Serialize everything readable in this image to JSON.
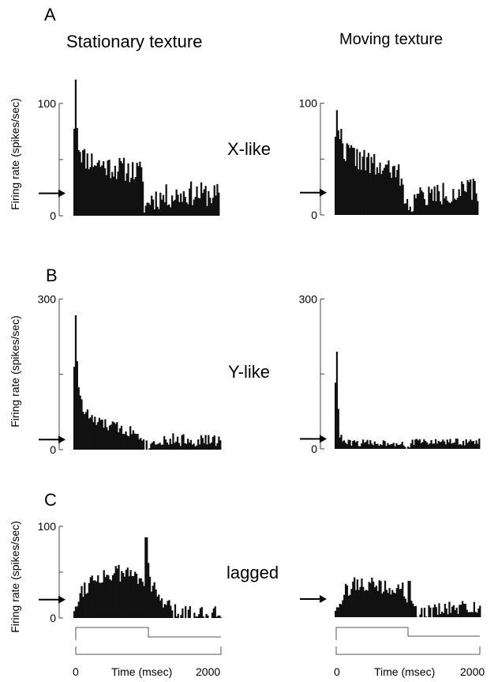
{
  "figure": {
    "column_titles": [
      "Stationary texture",
      "Moving texture"
    ],
    "ylabel": "Firing rate (spikes/sec)",
    "xlabel": "Time (msec)",
    "x_ticks": [
      "0",
      "2000"
    ]
  },
  "chart_data": [
    {
      "type": "bar",
      "panel": "A",
      "column": "Stationary texture",
      "cell_class": "X-like",
      "ylabel": "Firing rate (spikes/sec)",
      "ylim": [
        0,
        140
      ],
      "ytick_labels": [
        "0",
        "100"
      ],
      "y_ticks": [
        0,
        100
      ],
      "xlim": [
        0,
        2000
      ],
      "bin_ms": 20,
      "spontaneous_rate": 20,
      "profile": [
        [
          0,
          15
        ],
        [
          20,
          140
        ],
        [
          60,
          65
        ],
        [
          140,
          52
        ],
        [
          400,
          45
        ],
        [
          950,
          38
        ],
        [
          960,
          2
        ],
        [
          1040,
          15
        ],
        [
          1600,
          20
        ],
        [
          2000,
          18
        ]
      ],
      "noise": 11,
      "seed": 11
    },
    {
      "type": "bar",
      "panel": "A",
      "column": "Moving texture",
      "cell_class": "X-like",
      "ylabel": "Firing rate (spikes/sec)",
      "ylim": [
        0,
        140
      ],
      "ytick_labels": [
        "0",
        "100"
      ],
      "y_ticks": [
        0,
        100
      ],
      "xlim": [
        0,
        2000
      ],
      "bin_ms": 20,
      "spontaneous_rate": 20,
      "profile": [
        [
          0,
          40
        ],
        [
          20,
          100
        ],
        [
          60,
          75
        ],
        [
          140,
          58
        ],
        [
          500,
          45
        ],
        [
          950,
          35
        ],
        [
          960,
          2
        ],
        [
          1100,
          15
        ],
        [
          1600,
          20
        ],
        [
          2000,
          22
        ]
      ],
      "noise": 11,
      "seed": 22
    },
    {
      "type": "bar",
      "panel": "B",
      "column": "Stationary texture",
      "cell_class": "Y-like",
      "ylabel": "Firing rate (spikes/sec)",
      "ylim": [
        0,
        310
      ],
      "ytick_labels": [
        "0",
        "300"
      ],
      "y_ticks": [
        0,
        300
      ],
      "xlim": [
        0,
        2000
      ],
      "bin_ms": 20,
      "spontaneous_rate": 20,
      "profile": [
        [
          0,
          20
        ],
        [
          20,
          310
        ],
        [
          60,
          140
        ],
        [
          120,
          80
        ],
        [
          300,
          55
        ],
        [
          950,
          30
        ],
        [
          960,
          5
        ],
        [
          1150,
          20
        ],
        [
          2000,
          18
        ]
      ],
      "noise": 13,
      "seed": 33
    },
    {
      "type": "bar",
      "panel": "B",
      "column": "Moving texture",
      "cell_class": "Y-like",
      "ylabel": "Firing rate (spikes/sec)",
      "ylim": [
        0,
        310
      ],
      "ytick_labels": [
        "0",
        "300"
      ],
      "y_ticks": [
        0,
        300
      ],
      "xlim": [
        0,
        2000
      ],
      "bin_ms": 20,
      "spontaneous_rate": 20,
      "profile": [
        [
          0,
          15
        ],
        [
          20,
          250
        ],
        [
          60,
          28
        ],
        [
          140,
          12
        ],
        [
          950,
          12
        ],
        [
          960,
          2
        ],
        [
          1100,
          14
        ],
        [
          2000,
          14
        ]
      ],
      "noise": 7,
      "seed": 44
    },
    {
      "type": "bar",
      "panel": "C",
      "column": "Stationary texture",
      "cell_class": "lagged",
      "ylabel": "Firing rate (spikes/sec)",
      "ylim": [
        0,
        100
      ],
      "ytick_labels": [
        "0",
        "100"
      ],
      "y_ticks": [
        0,
        100
      ],
      "xlim": [
        0,
        2000
      ],
      "bin_ms": 20,
      "spontaneous_rate": 20,
      "profile": [
        [
          0,
          5
        ],
        [
          100,
          30
        ],
        [
          300,
          45
        ],
        [
          600,
          48
        ],
        [
          850,
          48
        ],
        [
          1000,
          40
        ],
        [
          1150,
          22
        ],
        [
          1350,
          5
        ],
        [
          2000,
          5
        ]
      ],
      "spikes": [
        [
          980,
          88
        ],
        [
          1000,
          60
        ]
      ],
      "noise": 10,
      "seed": 55
    },
    {
      "type": "bar",
      "panel": "C",
      "column": "Moving texture",
      "cell_class": "lagged",
      "ylabel": "Firing rate (spikes/sec)",
      "ylim": [
        0,
        100
      ],
      "ytick_labels": [],
      "y_ticks": [],
      "xlim": [
        0,
        2000
      ],
      "bin_ms": 20,
      "spontaneous_rate": 20,
      "profile": [
        [
          0,
          5
        ],
        [
          100,
          25
        ],
        [
          300,
          38
        ],
        [
          700,
          32
        ],
        [
          950,
          30
        ],
        [
          1000,
          15
        ],
        [
          1100,
          5
        ],
        [
          1500,
          8
        ],
        [
          2000,
          12
        ]
      ],
      "spikes": [
        [
          1020,
          40
        ]
      ],
      "noise": 9,
      "seed": 66
    }
  ],
  "rows": [
    {
      "panel_letter": "A",
      "cell_class": "X-like"
    },
    {
      "panel_letter": "B",
      "cell_class": "Y-like"
    },
    {
      "panel_letter": "C",
      "cell_class": "lagged"
    }
  ]
}
